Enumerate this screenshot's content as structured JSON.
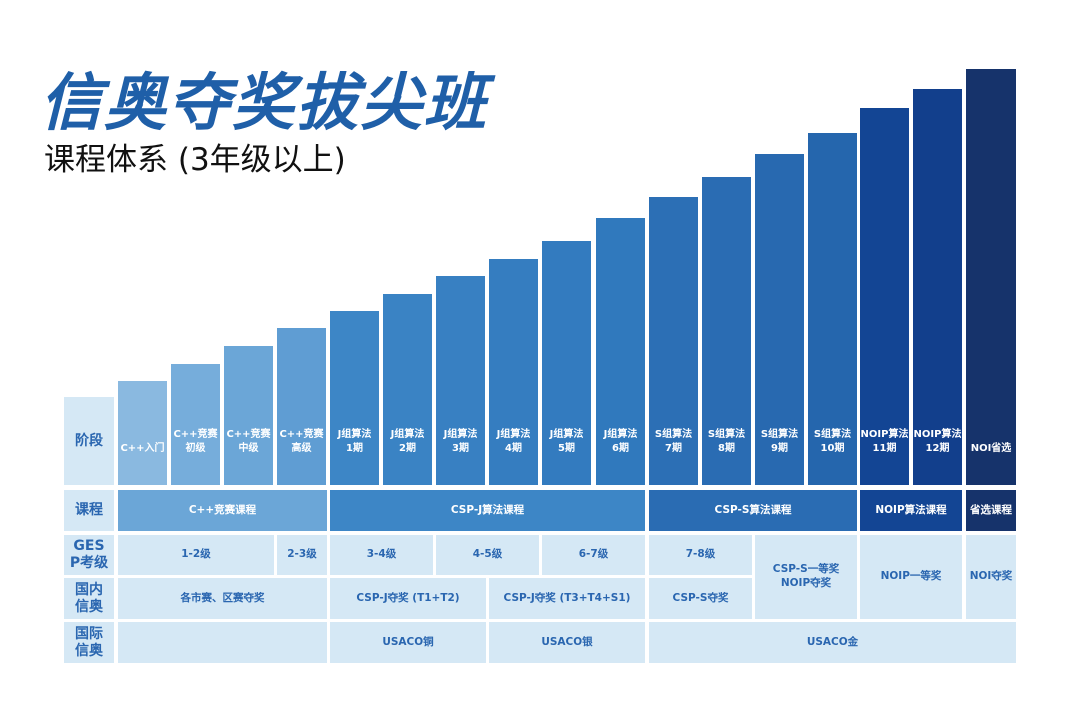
{
  "title": "信奥夺奖拔尖班",
  "subtitle": "课程体系 (3年级以上)",
  "row_labels": {
    "stage": "阶段",
    "course": "课程",
    "gesp": "GESP考级",
    "domestic": "国内信奥",
    "international": "国际信奥"
  },
  "stages": [
    {
      "line1": "C++入门",
      "line2": ""
    },
    {
      "line1": "C++竞赛",
      "line2": "初级"
    },
    {
      "line1": "C++竞赛",
      "line2": "中级"
    },
    {
      "line1": "C++竞赛",
      "line2": "高级"
    },
    {
      "line1": "J组算法",
      "line2": "1期"
    },
    {
      "line1": "J组算法",
      "line2": "2期"
    },
    {
      "line1": "J组算法",
      "line2": "3期"
    },
    {
      "line1": "J组算法",
      "line2": "4期"
    },
    {
      "line1": "J组算法",
      "line2": "5期"
    },
    {
      "line1": "J组算法",
      "line2": "6期"
    },
    {
      "line1": "S组算法",
      "line2": "7期"
    },
    {
      "line1": "S组算法",
      "line2": "8期"
    },
    {
      "line1": "S组算法",
      "line2": "9期"
    },
    {
      "line1": "S组算法",
      "line2": "10期"
    },
    {
      "line1": "NOIP算法",
      "line2": "11期"
    },
    {
      "line1": "NOIP算法",
      "line2": "12期"
    },
    {
      "line1": "NOI省选",
      "line2": ""
    }
  ],
  "courses": [
    "C++竞赛课程",
    "CSP-J算法课程",
    "CSP-S算法课程",
    "NOIP算法课程",
    "省选课程"
  ],
  "gesp": [
    "1-2级",
    "2-3级",
    "3-4级",
    "4-5级",
    "6-7级",
    "7-8级",
    "CSP-S一等奖\nNOIP夺奖",
    "NOIP一等奖",
    "NOI夺奖"
  ],
  "domestic": [
    "各市赛、区赛夺奖",
    "CSP-J夺奖 (T1+T2)",
    "CSP-J夺奖 (T3+T4+S1)",
    "CSP-S夺奖"
  ],
  "international": [
    "",
    "USACO铜",
    "USACO银",
    "USACO金"
  ],
  "colors": {
    "title": "#1f5fa8",
    "label_bg": "#d5e8f5",
    "bar_light": "#8ab9e0",
    "bar_dark": "#16336b"
  }
}
